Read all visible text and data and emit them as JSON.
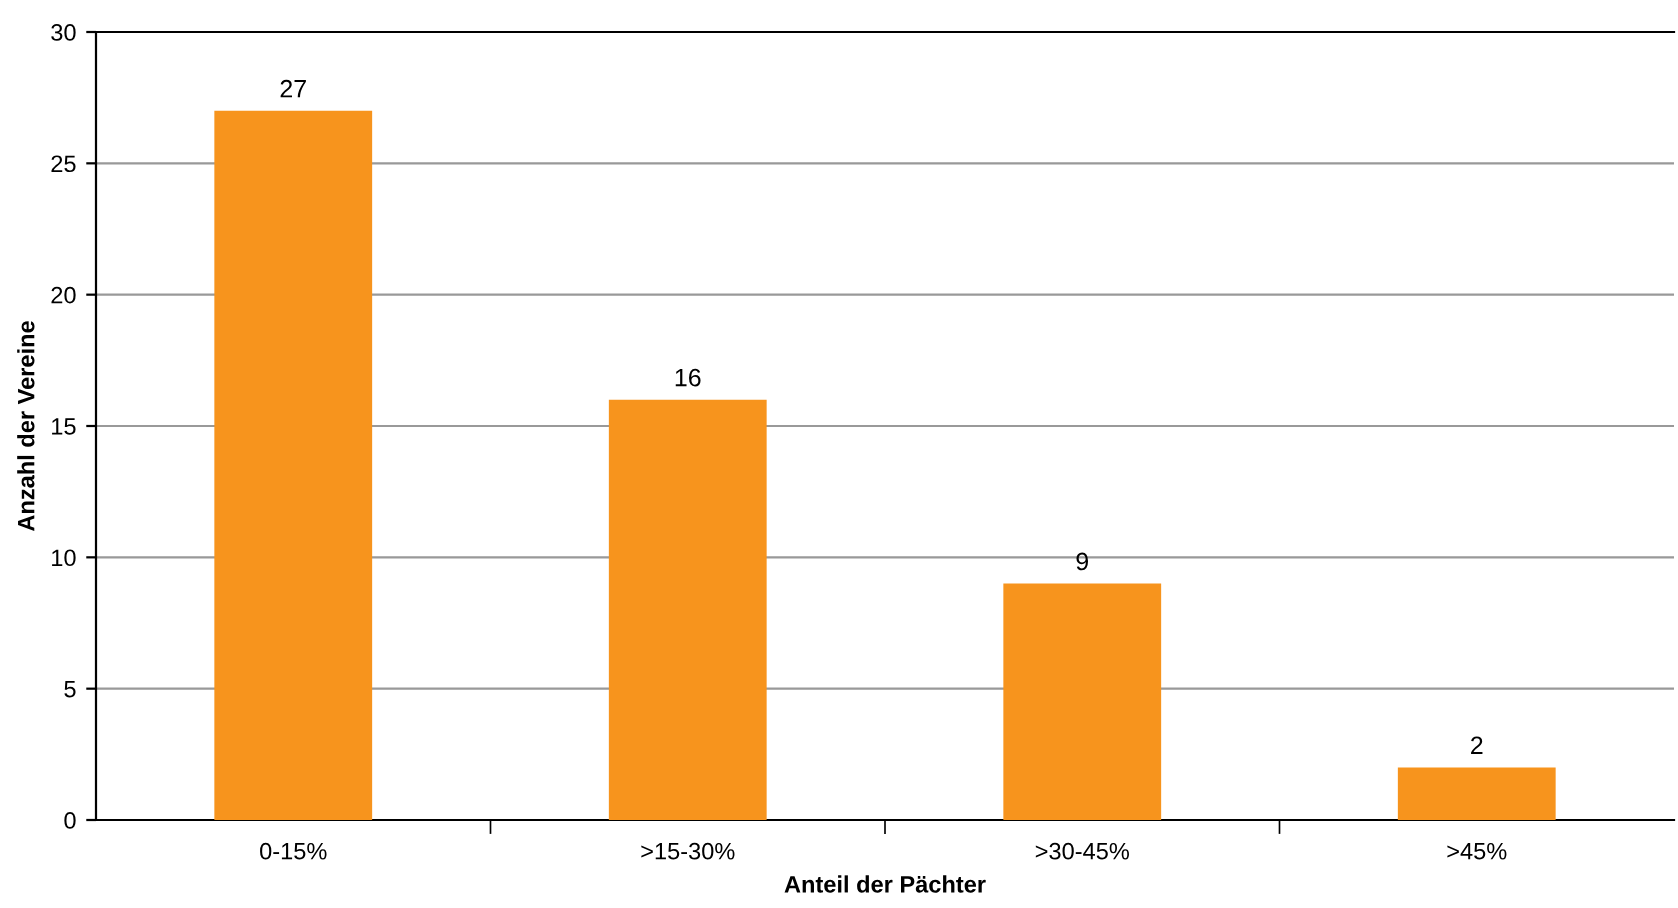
{
  "chart_data": {
    "type": "bar",
    "xlabel": "Anteil der Pächter",
    "ylabel": "Anzahl der Vereine",
    "categories": [
      "0-15%",
      ">15-30%",
      ">30-45%",
      ">45%"
    ],
    "values": [
      27,
      16,
      9,
      2
    ],
    "color": "#f7941d",
    "ylim": [
      0,
      30
    ],
    "yticks": [
      0,
      5,
      10,
      15,
      20,
      25,
      30
    ],
    "grid": "y",
    "data_labels": true
  }
}
